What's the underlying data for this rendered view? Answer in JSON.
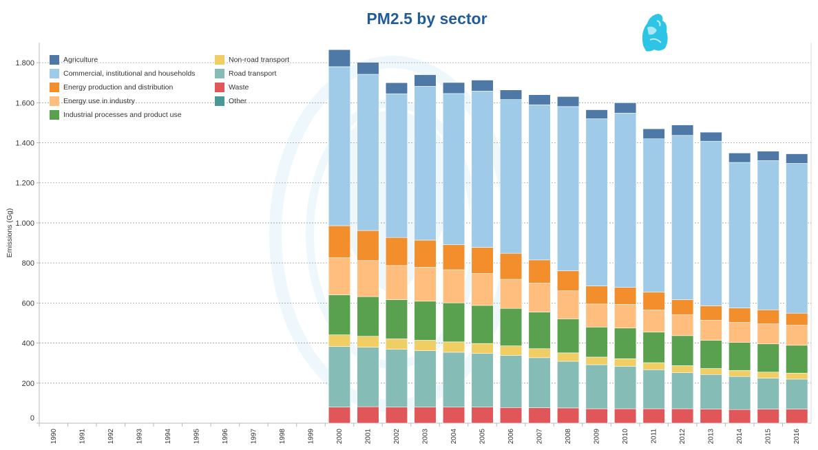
{
  "chart_data": {
    "type": "bar",
    "stacked": true,
    "title": "PM2.5 by sector",
    "ylabel": "Emissions (Gg)",
    "xlabel": "",
    "ylim": [
      0,
      1900
    ],
    "yticks": [
      0,
      200,
      400,
      600,
      800,
      1000,
      1200,
      1400,
      1600,
      1800
    ],
    "ytick_labels": [
      "0",
      "200",
      "400",
      "600",
      "800",
      "1.000",
      "1.200",
      "1.400",
      "1.600",
      "1.800"
    ],
    "grid": true,
    "legend_placement": "top-left",
    "categories": [
      "1990",
      "1991",
      "1992",
      "1993",
      "1994",
      "1995",
      "1996",
      "1997",
      "1998",
      "1999",
      "2000",
      "2001",
      "2002",
      "2003",
      "2004",
      "2005",
      "2006",
      "2007",
      "2008",
      "2009",
      "2010",
      "2011",
      "2012",
      "2013",
      "2014",
      "2015",
      "2016"
    ],
    "series": [
      {
        "name": "Waste",
        "color": "#e15759",
        "values": [
          0,
          0,
          0,
          0,
          0,
          0,
          0,
          0,
          0,
          0,
          80,
          82,
          80,
          80,
          80,
          80,
          78,
          77,
          76,
          72,
          72,
          72,
          72,
          70,
          68,
          70,
          70
        ]
      },
      {
        "name": "Road transport",
        "color": "#86bcb6",
        "values": [
          0,
          0,
          0,
          0,
          0,
          0,
          0,
          0,
          0,
          0,
          303,
          297,
          289,
          282,
          274,
          268,
          260,
          250,
          233,
          220,
          212,
          195,
          180,
          173,
          165,
          155,
          150
        ]
      },
      {
        "name": "Non-road transport",
        "color": "#f1ce63",
        "values": [
          0,
          0,
          0,
          0,
          0,
          0,
          0,
          0,
          0,
          0,
          58,
          55,
          52,
          52,
          52,
          50,
          48,
          45,
          42,
          38,
          38,
          35,
          35,
          30,
          30,
          30,
          30
        ]
      },
      {
        "name": "Industrial processes and product use",
        "color": "#59a14f",
        "values": [
          0,
          0,
          0,
          0,
          0,
          0,
          0,
          0,
          0,
          0,
          200,
          198,
          196,
          195,
          195,
          190,
          187,
          183,
          170,
          150,
          153,
          153,
          150,
          141,
          140,
          141,
          139
        ]
      },
      {
        "name": "Energy use in industry",
        "color": "#ffbe7d",
        "values": [
          0,
          0,
          0,
          0,
          0,
          0,
          0,
          0,
          0,
          0,
          185,
          180,
          170,
          170,
          165,
          160,
          145,
          145,
          140,
          115,
          118,
          110,
          105,
          100,
          100,
          100,
          100
        ]
      },
      {
        "name": "Energy production and distribution",
        "color": "#f28e2b",
        "values": [
          0,
          0,
          0,
          0,
          0,
          0,
          0,
          0,
          0,
          0,
          160,
          150,
          140,
          135,
          125,
          130,
          130,
          115,
          100,
          90,
          85,
          90,
          75,
          72,
          72,
          70,
          60
        ]
      },
      {
        "name": "Commercial, institutional and households",
        "color": "#a0cbe8",
        "values": [
          0,
          0,
          0,
          0,
          0,
          0,
          0,
          0,
          0,
          0,
          794,
          780,
          718,
          768,
          755,
          780,
          768,
          775,
          820,
          835,
          870,
          765,
          820,
          822,
          727,
          745,
          748
        ]
      },
      {
        "name": "Agriculture",
        "color": "#4e79a7",
        "values": [
          0,
          0,
          0,
          0,
          0,
          0,
          0,
          0,
          0,
          0,
          85,
          60,
          55,
          58,
          55,
          55,
          48,
          50,
          50,
          45,
          52,
          50,
          52,
          45,
          47,
          47,
          48
        ]
      },
      {
        "name": "Other",
        "color": "#499894",
        "values": [
          0,
          0,
          0,
          0,
          0,
          0,
          0,
          0,
          0,
          0,
          0,
          0,
          0,
          0,
          0,
          0,
          0,
          0,
          0,
          0,
          0,
          0,
          0,
          0,
          0,
          0,
          0
        ]
      }
    ],
    "legend_order": [
      "Agriculture",
      "Commercial, institutional and households",
      "Energy production and distribution",
      "Energy use in industry",
      "Industrial processes and product use",
      "Non-road transport",
      "Road transport",
      "Waste",
      "Other"
    ]
  }
}
